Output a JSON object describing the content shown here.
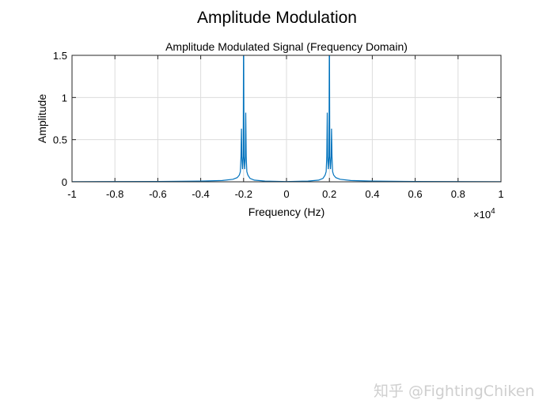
{
  "figure_title": "Amplitude Modulation",
  "watermark": "知乎 @FightingChiken",
  "chart_data": {
    "type": "line",
    "title": "Amplitude Modulated Signal (Frequency Domain)",
    "xlabel": "Frequency (Hz)",
    "ylabel": "Amplitude",
    "x_exponent_label": "×10",
    "x_exponent": "4",
    "xlim": [
      -10000,
      10000
    ],
    "ylim": [
      0,
      1.5
    ],
    "xticks": [
      -10000,
      -8000,
      -6000,
      -4000,
      -2000,
      0,
      2000,
      4000,
      6000,
      8000,
      10000
    ],
    "xtick_labels": [
      "-1",
      "-0.8",
      "-0.6",
      "-0.4",
      "-0.2",
      "0",
      "0.2",
      "0.4",
      "0.6",
      "0.8",
      "1"
    ],
    "yticks": [
      0,
      0.5,
      1,
      1.5
    ],
    "ytick_labels": [
      "0",
      "0.5",
      "1",
      "1.5"
    ],
    "grid": true,
    "color": "#0072BD",
    "series": [
      {
        "x": [
          -10000,
          -6000,
          -4000,
          -3000,
          -2500,
          -2300,
          -2200,
          -2150,
          -2120,
          -2100,
          -2080,
          -2050,
          -2020,
          -2000,
          -1980,
          -1950,
          -1920,
          -1900,
          -1880,
          -1850,
          -1800,
          -1700,
          -1500,
          -1000,
          0,
          1000,
          1500,
          1700,
          1800,
          1850,
          1880,
          1900,
          1920,
          1950,
          1980,
          2000,
          2020,
          2050,
          2080,
          2100,
          2120,
          2150,
          2200,
          2300,
          2500,
          3000,
          4000,
          6000,
          10000
        ],
        "y": [
          0.002,
          0.004,
          0.008,
          0.015,
          0.03,
          0.05,
          0.08,
          0.12,
          0.3,
          0.63,
          0.3,
          0.15,
          0.3,
          2.0,
          0.3,
          0.15,
          0.3,
          0.82,
          0.3,
          0.12,
          0.08,
          0.04,
          0.02,
          0.008,
          0.003,
          0.008,
          0.02,
          0.04,
          0.08,
          0.12,
          0.3,
          0.82,
          0.3,
          0.15,
          0.3,
          2.0,
          0.3,
          0.15,
          0.3,
          0.63,
          0.3,
          0.12,
          0.08,
          0.05,
          0.03,
          0.015,
          0.008,
          0.004,
          0.002
        ]
      }
    ]
  }
}
